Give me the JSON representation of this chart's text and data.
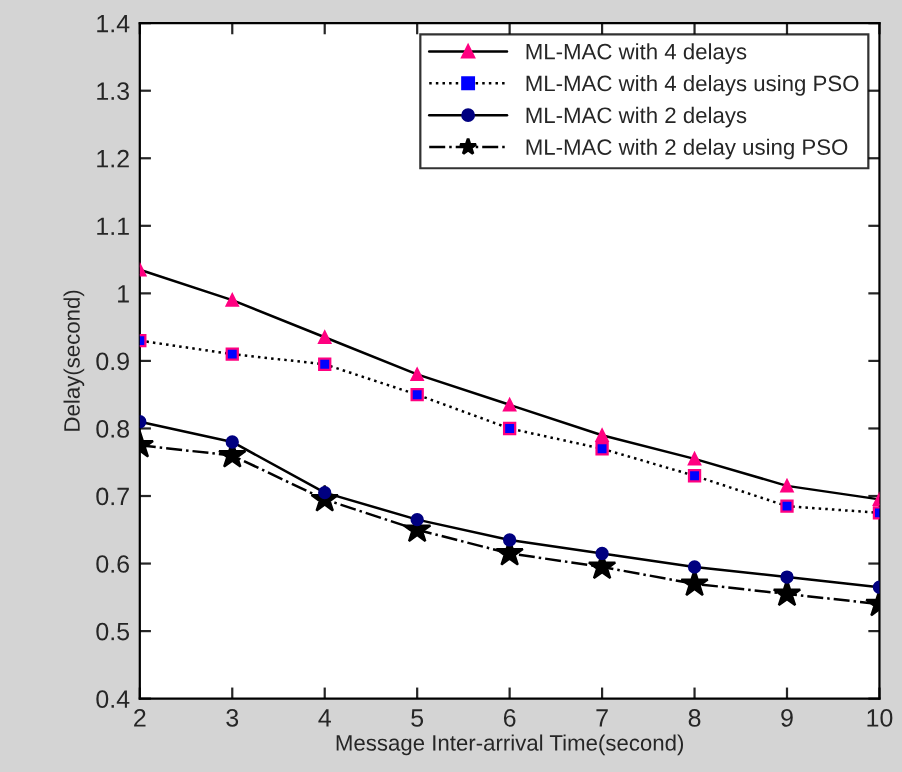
{
  "chart_data": {
    "type": "line",
    "xlabel": "Message Inter-arrival Time(second)",
    "ylabel": "Delay(second)",
    "x": [
      2,
      3,
      4,
      5,
      6,
      7,
      8,
      9,
      10
    ],
    "series": [
      {
        "name": "ML-MAC with 4 delays",
        "color": "#ff0080",
        "marker": "triangle",
        "line_style": "solid",
        "values": [
          1.035,
          0.99,
          0.935,
          0.88,
          0.835,
          0.79,
          0.755,
          0.715,
          0.695
        ]
      },
      {
        "name": "ML-MAC with 4 delays using PSO",
        "color": "#0000ff",
        "marker": "square",
        "line_style": "dotted",
        "values": [
          0.93,
          0.91,
          0.895,
          0.85,
          0.8,
          0.77,
          0.73,
          0.685,
          0.675
        ]
      },
      {
        "name": "ML-MAC with 2 delays",
        "color": "#000080",
        "marker": "circle",
        "line_style": "solid",
        "values": [
          0.81,
          0.78,
          0.705,
          0.665,
          0.635,
          0.615,
          0.595,
          0.58,
          0.565
        ]
      },
      {
        "name": "ML-MAC with 2 delay using PSO",
        "color": "#000000",
        "marker": "star",
        "line_style": "dashed",
        "values": [
          0.775,
          0.76,
          0.695,
          0.65,
          0.615,
          0.595,
          0.57,
          0.555,
          0.54
        ]
      }
    ],
    "xlim": [
      2,
      10
    ],
    "xticks": [
      2,
      3,
      4,
      5,
      6,
      7,
      8,
      9,
      10
    ],
    "ylim": [
      0.4,
      1.4
    ],
    "yticks": [
      0.4,
      0.5,
      0.6,
      0.7,
      0.8,
      0.9,
      1,
      1.1,
      1.2,
      1.3,
      1.4
    ],
    "grid": false,
    "legend": "top right"
  }
}
